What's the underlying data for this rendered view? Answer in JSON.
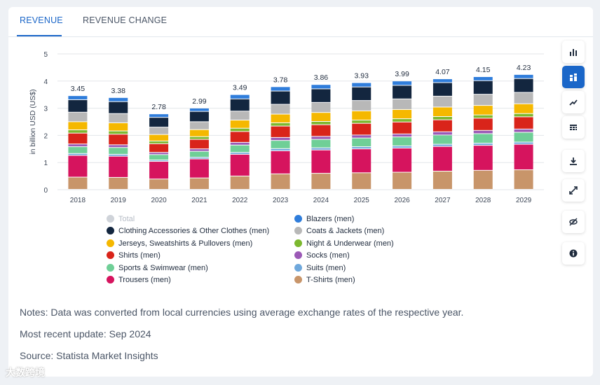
{
  "tabs": [
    {
      "label": "REVENUE"
    },
    {
      "label": "REVENUE CHANGE"
    }
  ],
  "notes": {
    "line1": "Notes: Data was converted from local currencies using average exchange rates of the respective year.",
    "line2": "Most recent update: Sep 2024",
    "line3": "Source: Statista Market Insights"
  },
  "watermark": "大数跨境",
  "toolbar": [
    "bar-chart-icon",
    "stacked-bar-icon",
    "trend-line-icon",
    "table-icon",
    "download-icon",
    "expand-icon",
    "hide-icon",
    "info-icon"
  ],
  "chart_data": {
    "type": "bar",
    "stacked": true,
    "ylabel": "in billion USD (US$)",
    "xlabel": "",
    "ylim": [
      0,
      5
    ],
    "yticks": [
      "0",
      "1",
      "2",
      "3",
      "4",
      "5"
    ],
    "categories": [
      "2018",
      "2019",
      "2020",
      "2021",
      "2022",
      "2023",
      "2024",
      "2025",
      "2026",
      "2027",
      "2028",
      "2029"
    ],
    "totals": [
      "3.45",
      "3.38",
      "2.78",
      "2.99",
      "3.49",
      "3.78",
      "3.86",
      "3.93",
      "3.99",
      "4.07",
      "4.15",
      "4.23"
    ],
    "series": [
      {
        "name": "T-Shirts (men)",
        "color": "#c8956a",
        "values": [
          0.45,
          0.44,
          0.38,
          0.42,
          0.49,
          0.57,
          0.59,
          0.61,
          0.63,
          0.67,
          0.7,
          0.72
        ]
      },
      {
        "name": "Trousers (men)",
        "color": "#d6145e",
        "values": [
          0.8,
          0.78,
          0.65,
          0.7,
          0.8,
          0.85,
          0.86,
          0.88,
          0.89,
          0.91,
          0.92,
          0.94
        ]
      },
      {
        "name": "Suits (men)",
        "color": "#6fa8dc",
        "values": [
          0.07,
          0.07,
          0.05,
          0.06,
          0.07,
          0.08,
          0.08,
          0.08,
          0.08,
          0.08,
          0.08,
          0.08
        ]
      },
      {
        "name": "Sports & Swimwear (men)",
        "color": "#6fcf97",
        "values": [
          0.25,
          0.25,
          0.2,
          0.22,
          0.27,
          0.3,
          0.31,
          0.32,
          0.33,
          0.34,
          0.35,
          0.36
        ]
      },
      {
        "name": "Socks (men)",
        "color": "#9b59b6",
        "values": [
          0.1,
          0.1,
          0.08,
          0.09,
          0.1,
          0.11,
          0.11,
          0.11,
          0.11,
          0.12,
          0.12,
          0.12
        ]
      },
      {
        "name": "Shirts (men)",
        "color": "#d9241a",
        "values": [
          0.4,
          0.39,
          0.32,
          0.35,
          0.4,
          0.42,
          0.43,
          0.43,
          0.44,
          0.44,
          0.45,
          0.45
        ]
      },
      {
        "name": "Night & Underwear (men)",
        "color": "#7cb82f",
        "values": [
          0.12,
          0.12,
          0.1,
          0.1,
          0.12,
          0.12,
          0.12,
          0.12,
          0.12,
          0.12,
          0.12,
          0.12
        ]
      },
      {
        "name": "Jerseys, Sweatshirts & Pullovers (men)",
        "color": "#f5b800",
        "values": [
          0.3,
          0.3,
          0.24,
          0.26,
          0.3,
          0.32,
          0.33,
          0.34,
          0.34,
          0.35,
          0.35,
          0.36
        ]
      },
      {
        "name": "Coats & Jackets (men)",
        "color": "#b8b8b8",
        "values": [
          0.35,
          0.34,
          0.27,
          0.29,
          0.33,
          0.36,
          0.37,
          0.38,
          0.39,
          0.4,
          0.41,
          0.42
        ]
      },
      {
        "name": "Clothing Accessories & Other Clothes (men)",
        "color": "#13263f",
        "values": [
          0.46,
          0.44,
          0.36,
          0.38,
          0.45,
          0.49,
          0.5,
          0.5,
          0.5,
          0.5,
          0.5,
          0.51
        ]
      },
      {
        "name": "Blazers (men)",
        "color": "#2f7ddb",
        "values": [
          0.15,
          0.15,
          0.13,
          0.12,
          0.16,
          0.16,
          0.16,
          0.16,
          0.16,
          0.14,
          0.15,
          0.15
        ]
      }
    ],
    "legend": [
      {
        "label": "Total",
        "color": "#cfd3d9",
        "dim": true
      },
      {
        "label": "Blazers (men)",
        "color": "#2f7ddb"
      },
      {
        "label": "Clothing Accessories & Other Clothes (men)",
        "color": "#13263f"
      },
      {
        "label": "Coats & Jackets (men)",
        "color": "#b8b8b8"
      },
      {
        "label": "Jerseys, Sweatshirts & Pullovers (men)",
        "color": "#f5b800"
      },
      {
        "label": "Night & Underwear (men)",
        "color": "#7cb82f"
      },
      {
        "label": "Shirts (men)",
        "color": "#d9241a"
      },
      {
        "label": "Socks (men)",
        "color": "#9b59b6"
      },
      {
        "label": "Sports & Swimwear (men)",
        "color": "#6fcf97"
      },
      {
        "label": "Suits (men)",
        "color": "#6fa8dc"
      },
      {
        "label": "Trousers (men)",
        "color": "#d6145e"
      },
      {
        "label": "T-Shirts (men)",
        "color": "#c8956a"
      }
    ]
  }
}
